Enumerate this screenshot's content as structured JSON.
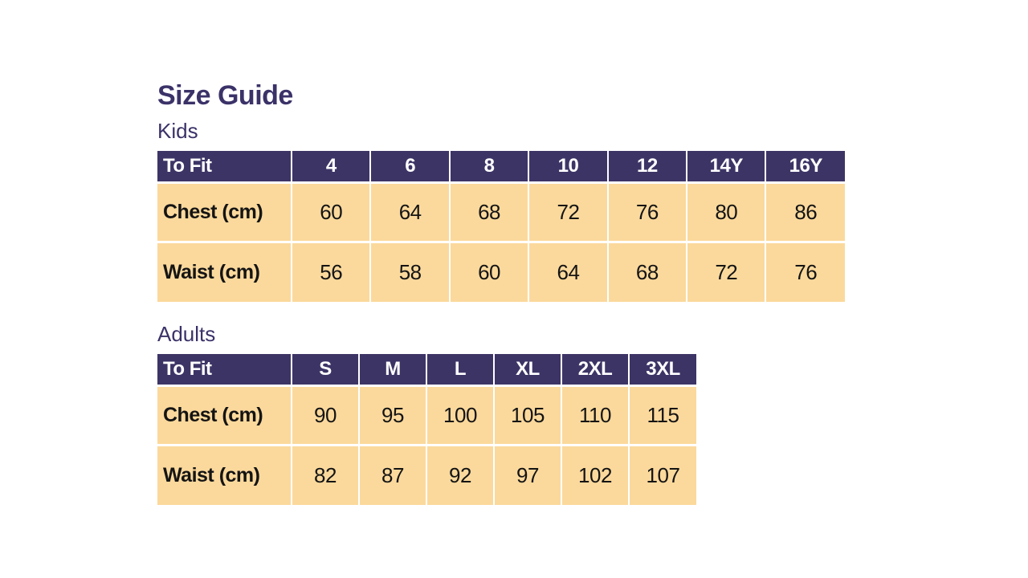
{
  "page": {
    "title": "Size Guide"
  },
  "colors": {
    "header_bg": "#3D3466",
    "header_text": "#FFFFFF",
    "cell_bg": "#FBD99C",
    "cell_text": "#141414",
    "heading_text": "#3B3268",
    "page_bg": "#FFFFFF",
    "divider": "#FFFFFF"
  },
  "tables": [
    {
      "heading": "Kids",
      "columns": [
        "To Fit",
        "4",
        "6",
        "8",
        "10",
        "12",
        "14Y",
        "16Y"
      ],
      "rows": [
        {
          "label": "Chest (cm)",
          "values": [
            "60",
            "64",
            "68",
            "72",
            "76",
            "80",
            "86"
          ]
        },
        {
          "label": "Waist (cm)",
          "values": [
            "56",
            "58",
            "60",
            "64",
            "68",
            "72",
            "76"
          ]
        }
      ]
    },
    {
      "heading": "Adults",
      "columns": [
        "To Fit",
        "S",
        "M",
        "L",
        "XL",
        "2XL",
        "3XL"
      ],
      "rows": [
        {
          "label": "Chest (cm)",
          "values": [
            "90",
            "95",
            "100",
            "105",
            "110",
            "115"
          ]
        },
        {
          "label": "Waist (cm)",
          "values": [
            "82",
            "87",
            "92",
            "97",
            "102",
            "107"
          ]
        }
      ]
    }
  ]
}
